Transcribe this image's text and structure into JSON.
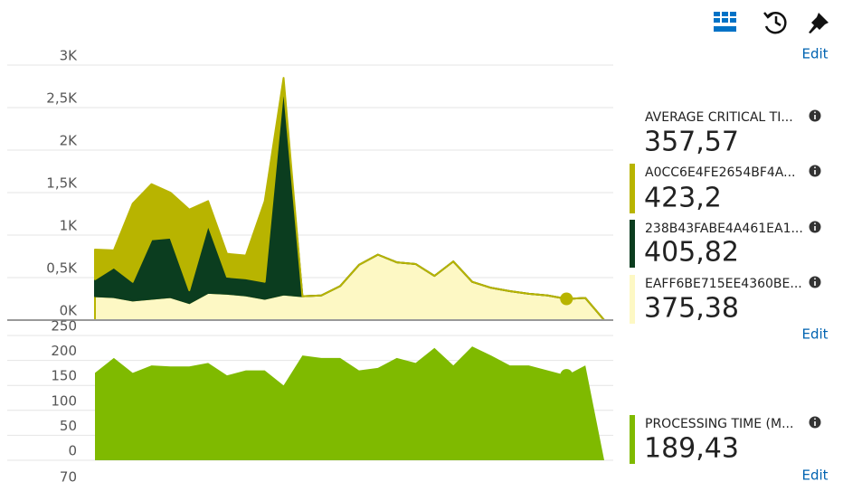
{
  "toolbar": {
    "edit": "Edit"
  },
  "chart_data": [
    {
      "type": "stacked-area",
      "categories": [
        null,
        null,
        null,
        null,
        null,
        null,
        null,
        null,
        null,
        null,
        null,
        null,
        null,
        null,
        null,
        null,
        null,
        null,
        null,
        null,
        null,
        null,
        null,
        null,
        null,
        null,
        null,
        null
      ],
      "ylim": [
        0,
        3000
      ],
      "yticks": [
        {
          "value": 0,
          "label": "0K"
        },
        {
          "value": 500,
          "label": "0,5K"
        },
        {
          "value": 1000,
          "label": "1K"
        },
        {
          "value": 1500,
          "label": "1,5K"
        },
        {
          "value": 2000,
          "label": "2K"
        },
        {
          "value": 2500,
          "label": "2,5K"
        },
        {
          "value": 3000,
          "label": "3K"
        }
      ],
      "grid": true,
      "summary": {
        "name": "AVERAGE CRITICAL TI...",
        "value": 357.57,
        "value_label": "357,57"
      },
      "series": [
        {
          "name": "A0CC6E4FE2654BF4A...",
          "color": "#b8b400",
          "value": 423.2,
          "value_label": "423,2",
          "values": [
            350,
            200,
            920,
            650,
            530,
            950,
            280,
            270,
            270,
            950,
            100,
            0,
            0,
            0,
            0,
            0,
            0,
            0,
            0,
            0,
            0,
            0,
            0,
            0,
            0,
            0,
            0,
            0
          ]
        },
        {
          "name": "238B43FABE4A461EA1...",
          "color": "#0b3d1f",
          "value": 405.82,
          "value_label": "405,82",
          "values": [
            200,
            350,
            220,
            700,
            700,
            150,
            800,
            200,
            200,
            200,
            2450,
            0,
            0,
            0,
            0,
            0,
            0,
            0,
            0,
            0,
            0,
            0,
            0,
            0,
            0,
            0,
            0,
            0
          ]
        },
        {
          "name": "EAFF6BE715EE4360BE...",
          "color": "#fdf8c4",
          "value": 375.38,
          "value_label": "375,38",
          "values": [
            280,
            270,
            230,
            250,
            270,
            200,
            320,
            310,
            290,
            250,
            300,
            280,
            290,
            400,
            650,
            770,
            680,
            660,
            520,
            690,
            450,
            380,
            340,
            310,
            290,
            250,
            260,
            0
          ]
        }
      ],
      "edit_label": "Edit"
    },
    {
      "type": "area",
      "categories": [
        null,
        null,
        null,
        null,
        null,
        null,
        null,
        null,
        null,
        null,
        null,
        null,
        null,
        null,
        null,
        null,
        null,
        null,
        null,
        null,
        null,
        null,
        null,
        null,
        null,
        null,
        null,
        null
      ],
      "ylim": [
        0,
        250
      ],
      "yticks": [
        0,
        50,
        100,
        150,
        200,
        250
      ],
      "grid": true,
      "series": [
        {
          "name": "PROCESSING TIME (M...",
          "color": "#7fba00",
          "value": 189.43,
          "value_label": "189,43",
          "values": [
            175,
            205,
            175,
            190,
            188,
            188,
            195,
            170,
            180,
            180,
            150,
            210,
            205,
            205,
            180,
            185,
            205,
            195,
            225,
            190,
            228,
            210,
            190,
            190,
            180,
            170,
            190,
            0
          ]
        }
      ],
      "edit_label": "Edit"
    },
    {
      "type": "line",
      "yticks": [
        70
      ]
    }
  ]
}
